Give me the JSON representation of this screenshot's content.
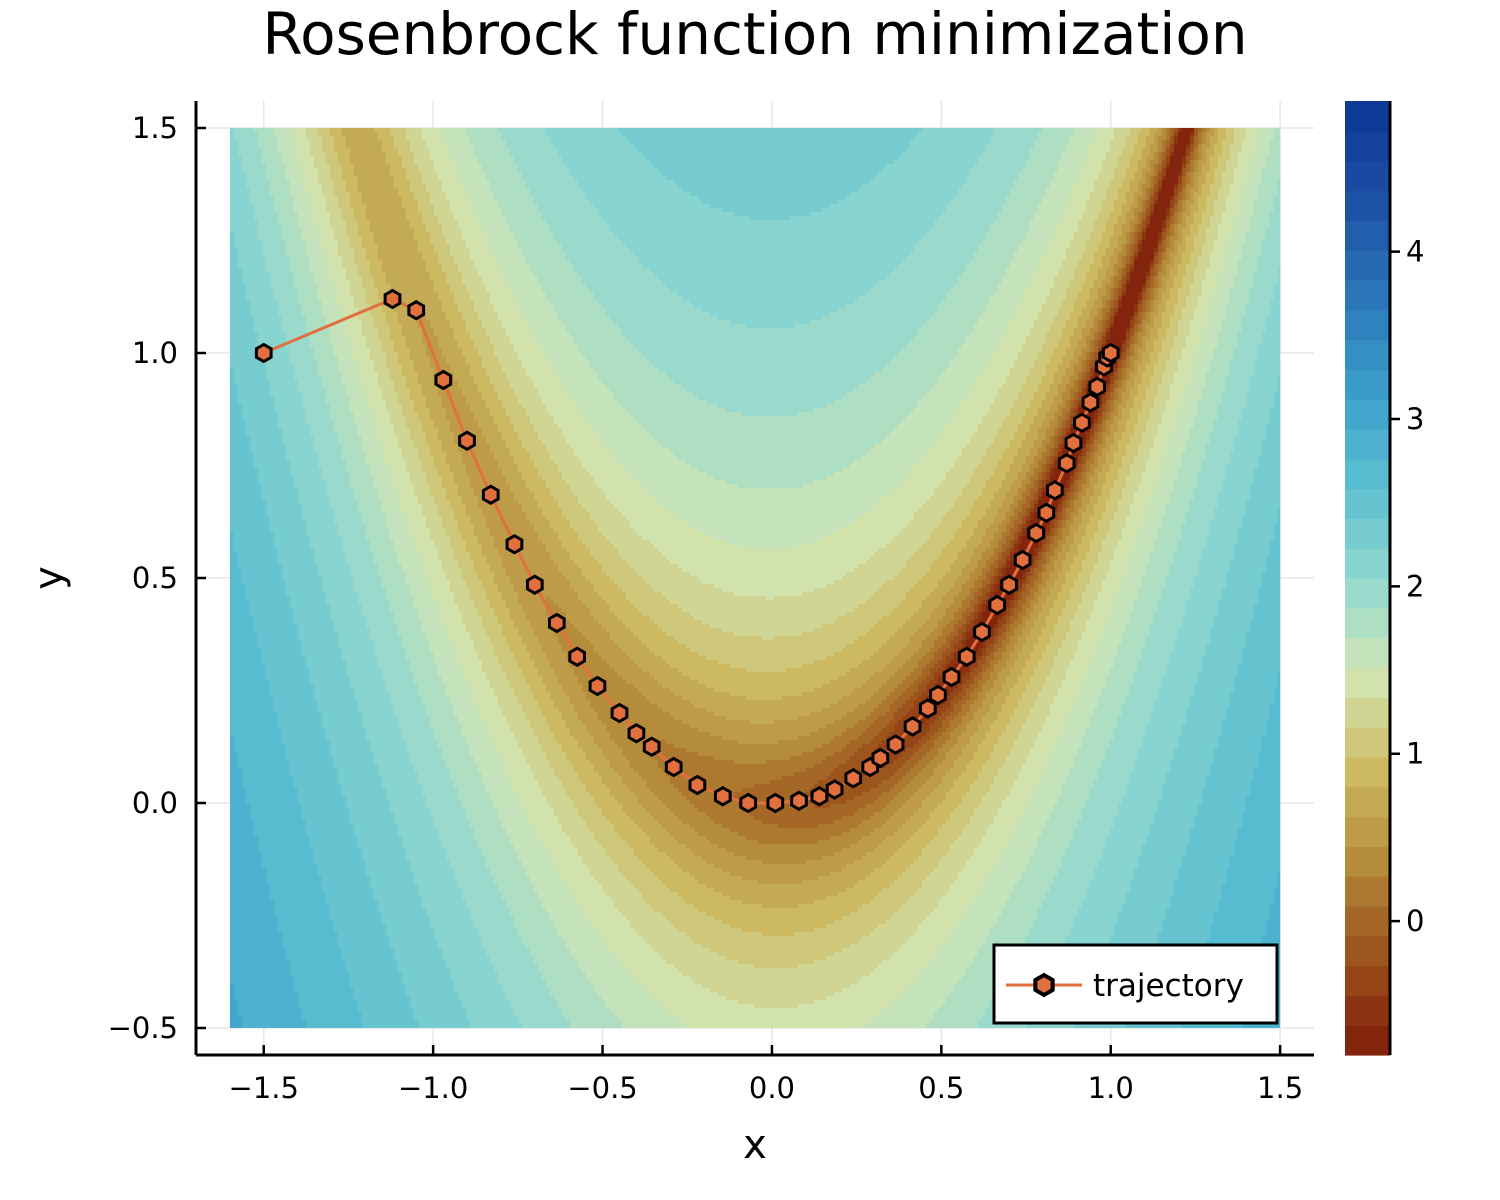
{
  "chart_data": {
    "type": "contour",
    "title": "Rosenbrock function minimization",
    "xlabel": "x",
    "ylabel": "y",
    "xlim": [
      -1.7,
      1.6
    ],
    "ylim": [
      -0.56,
      1.56
    ],
    "field_xlim": [
      -1.6,
      1.5
    ],
    "field_ylim": [
      -0.5,
      1.5
    ],
    "xticks": [
      -1.5,
      -1.0,
      -0.5,
      0.0,
      0.5,
      1.0,
      1.5
    ],
    "xtick_labels": [
      "−1.5",
      "−1.0",
      "−0.5",
      "0.0",
      "0.5",
      "1.0",
      "1.5"
    ],
    "yticks": [
      -0.5,
      0.0,
      0.5,
      1.0,
      1.5
    ],
    "ytick_labels": [
      "−0.5",
      "0.0",
      "0.5",
      "1.0",
      "1.5"
    ],
    "grid": true,
    "colorbar": {
      "range": [
        -0.8,
        4.9
      ],
      "ticks": [
        0,
        1,
        2,
        3,
        4
      ],
      "tick_labels": [
        "0",
        "1",
        "2",
        "3",
        "4"
      ],
      "levels": 32,
      "scale_note": "log10 of Rosenbrock value",
      "colormap": [
        "#7f1d0b",
        "#9a4f1a",
        "#b48a3a",
        "#cdbb62",
        "#d3e6b4",
        "#8fd8d0",
        "#5bbfd1",
        "#3a9ccb",
        "#2b74b8",
        "#1d4fa3",
        "#0a3595"
      ]
    },
    "legend": {
      "position": "bottom-right",
      "entries": [
        "trajectory"
      ]
    },
    "series": [
      {
        "name": "trajectory",
        "color": "#e2703f",
        "marker": "hexagon",
        "x": [
          -1.5,
          -1.12,
          -1.05,
          -0.97,
          -0.9,
          -0.83,
          -0.76,
          -0.7,
          -0.635,
          -0.575,
          -0.515,
          -0.45,
          -0.4,
          -0.355,
          -0.29,
          -0.22,
          -0.145,
          -0.07,
          0.01,
          0.08,
          0.14,
          0.185,
          0.24,
          0.29,
          0.32,
          0.365,
          0.415,
          0.46,
          0.49,
          0.53,
          0.575,
          0.62,
          0.665,
          0.7,
          0.74,
          0.78,
          0.81,
          0.835,
          0.87,
          0.89,
          0.915,
          0.94,
          0.96,
          0.98,
          0.99,
          1.0
        ],
        "y": [
          1.0,
          1.12,
          1.095,
          0.94,
          0.805,
          0.685,
          0.575,
          0.485,
          0.4,
          0.325,
          0.26,
          0.2,
          0.155,
          0.125,
          0.08,
          0.04,
          0.015,
          0.0,
          0.0,
          0.005,
          0.015,
          0.03,
          0.055,
          0.08,
          0.1,
          0.13,
          0.17,
          0.21,
          0.24,
          0.28,
          0.325,
          0.38,
          0.44,
          0.485,
          0.54,
          0.6,
          0.645,
          0.695,
          0.755,
          0.8,
          0.845,
          0.89,
          0.925,
          0.97,
          0.99,
          1.0
        ]
      }
    ]
  }
}
